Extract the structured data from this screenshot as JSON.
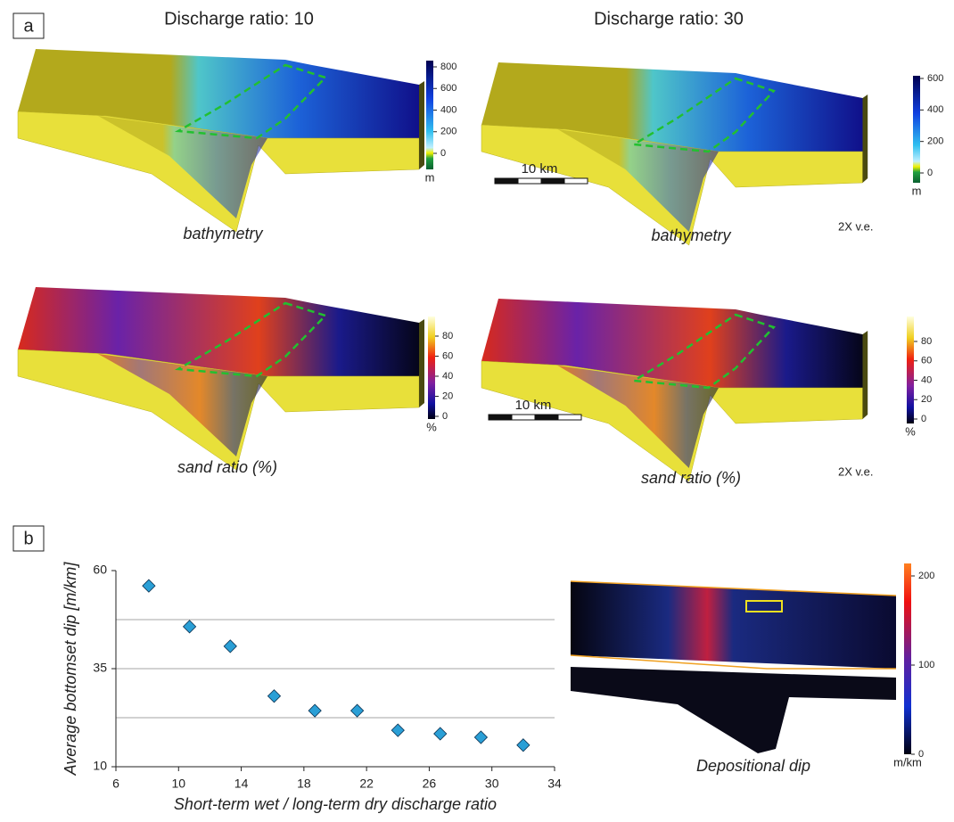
{
  "panel_a": {
    "label": "a",
    "columns": [
      {
        "title": "Discharge ratio: 10",
        "bathymetry": {
          "caption": "bathymetry",
          "colorbar": {
            "ticks": [
              800,
              600,
              400,
              200,
              0
            ],
            "unit": "m"
          }
        },
        "sand_ratio": {
          "caption": "sand ratio (%)",
          "colorbar": {
            "ticks": [
              80,
              60,
              40,
              20,
              0
            ],
            "unit": "%"
          }
        }
      },
      {
        "title": "Discharge ratio: 30",
        "bathymetry": {
          "caption": "bathymetry",
          "scale_bar": "10 km",
          "exaggeration": "2X v.e.",
          "colorbar": {
            "ticks": [
              600,
              400,
              200,
              0
            ],
            "unit": "m"
          }
        },
        "sand_ratio": {
          "caption": "sand ratio (%)",
          "scale_bar": "10 km",
          "exaggeration": "2X v.e.",
          "colorbar": {
            "ticks": [
              80,
              60,
              40,
              20,
              0
            ],
            "unit": "%"
          }
        }
      }
    ]
  },
  "panel_b": {
    "label": "b",
    "map": {
      "caption": "Depositional dip",
      "colorbar": {
        "ticks": [
          200,
          100,
          0
        ],
        "unit": "m/km"
      }
    }
  },
  "chart_data": {
    "type": "scatter",
    "x_label": "Short-term wet / long-term dry discharge ratio",
    "y_label": "Average bottomset dip [m/km]",
    "x": [
      8.1,
      10.7,
      13.3,
      16.1,
      18.7,
      21.4,
      24.0,
      26.7,
      29.3,
      32.0
    ],
    "values": [
      56.1,
      45.7,
      40.7,
      28.0,
      24.3,
      24.3,
      19.3,
      18.4,
      17.5,
      15.5
    ],
    "color": "#2a9fd6",
    "xlim": [
      6,
      34
    ],
    "ylim": [
      10,
      60
    ],
    "xticks": [
      6,
      10,
      14,
      18,
      22,
      26,
      30,
      34
    ],
    "yticks": [
      10,
      35,
      60
    ],
    "ygrid": [
      47.5,
      35,
      22.5
    ]
  }
}
